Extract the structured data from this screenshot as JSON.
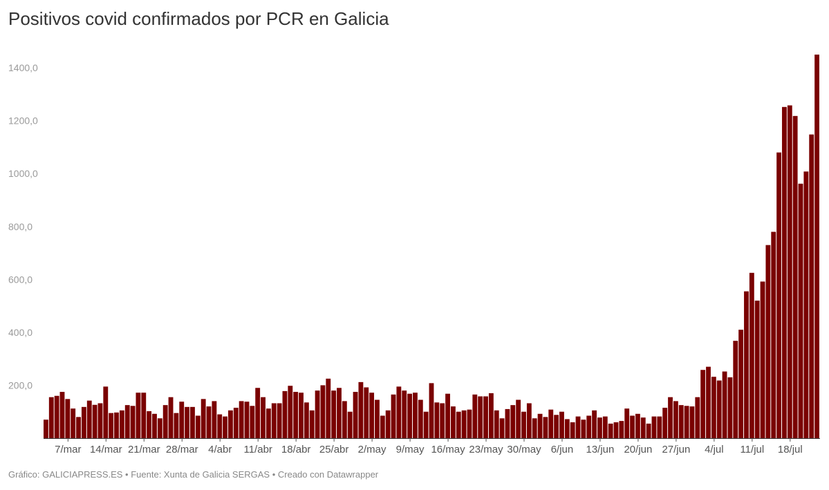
{
  "chart_data": {
    "type": "bar",
    "title": "Positivos covid confirmados por PCR en Galicia",
    "xlabel": "",
    "ylabel": "",
    "ylim": [
      0,
      1450
    ],
    "y_ticks": [
      200,
      400,
      600,
      800,
      1000,
      1200,
      1400
    ],
    "y_tick_labels": [
      "200,0",
      "400,0",
      "600,0",
      "800,0",
      "1000,0",
      "1200,0",
      "1400,0"
    ],
    "x_tick_labels": [
      "7/mar",
      "14/mar",
      "21/mar",
      "28/mar",
      "4/abr",
      "11/abr",
      "18/abr",
      "25/abr",
      "2/may",
      "9/may",
      "16/may",
      "23/may",
      "30/may",
      "6/jun",
      "13/jun",
      "20/jun",
      "27/jun",
      "4/jul",
      "11/jul",
      "18/jul"
    ],
    "x_tick_start_index": 4,
    "x_tick_step": 7,
    "bar_color": "#7a0000",
    "grid": false,
    "values": [
      70,
      155,
      160,
      175,
      148,
      112,
      80,
      118,
      142,
      126,
      132,
      195,
      95,
      97,
      105,
      125,
      122,
      172,
      172,
      102,
      92,
      75,
      125,
      155,
      95,
      138,
      118,
      118,
      85,
      148,
      120,
      140,
      90,
      82,
      105,
      115,
      140,
      138,
      122,
      190,
      155,
      112,
      132,
      132,
      178,
      198,
      175,
      172,
      135,
      105,
      180,
      200,
      225,
      180,
      190,
      140,
      100,
      175,
      212,
      192,
      172,
      145,
      85,
      105,
      165,
      195,
      180,
      168,
      172,
      145,
      100,
      208,
      135,
      132,
      168,
      120,
      100,
      105,
      108,
      165,
      158,
      158,
      170,
      105,
      75,
      110,
      125,
      145,
      100,
      132,
      75,
      92,
      80,
      108,
      88,
      100,
      72,
      60,
      82,
      70,
      85,
      105,
      78,
      82,
      55,
      60,
      65,
      112,
      85,
      92,
      78,
      55,
      82,
      82,
      115,
      155,
      140,
      125,
      122,
      120,
      155,
      258,
      270,
      232,
      218,
      252,
      230,
      368,
      410,
      555,
      625,
      520,
      592,
      730,
      780,
      1080,
      1252,
      1258,
      1218,
      962,
      1008,
      1148,
      1450
    ]
  },
  "footer": "Gráfico: GALICIAPRESS.ES • Fuente: Xunta de Galicia SERGAS • Creado con Datawrapper"
}
